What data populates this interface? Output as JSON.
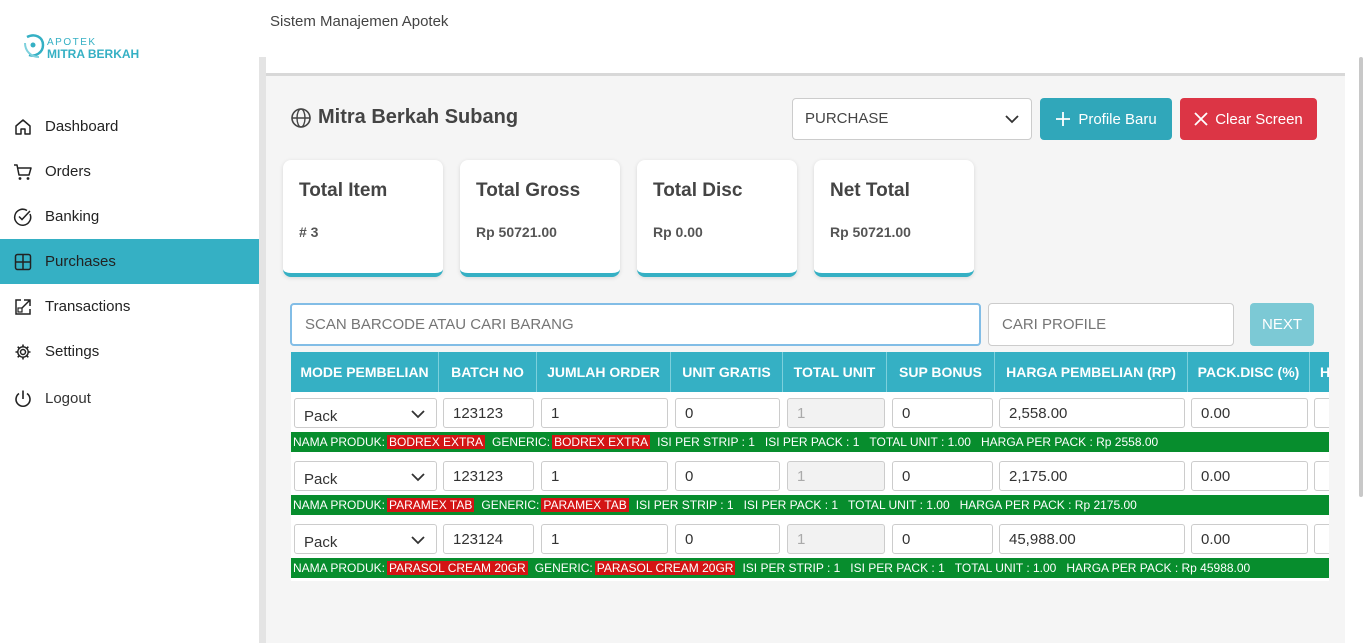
{
  "brand": {
    "line1": "APOTEK",
    "line2": "MITRA BERKAH"
  },
  "header": {
    "title": "Sistem Manajemen Apotek"
  },
  "nav": {
    "items": [
      {
        "label": "Dashboard",
        "icon": "home-icon"
      },
      {
        "label": "Orders",
        "icon": "cart-icon"
      },
      {
        "label": "Banking",
        "icon": "check-circle-icon"
      },
      {
        "label": "Purchases",
        "icon": "grid-icon",
        "active": true
      },
      {
        "label": "Transactions",
        "icon": "external-link-icon"
      },
      {
        "label": "Settings",
        "icon": "gear-icon"
      },
      {
        "label": "Logout",
        "icon": "power-icon"
      }
    ]
  },
  "store": {
    "name": "Mitra Berkah Subang"
  },
  "mode": {
    "selected": "PURCHASE"
  },
  "buttons": {
    "profile_baru": "Profile Baru",
    "clear_screen": "Clear Screen",
    "next": "NEXT"
  },
  "cards": [
    {
      "title": "Total Item",
      "value": "# 3"
    },
    {
      "title": "Total Gross",
      "value": "Rp 50721.00"
    },
    {
      "title": "Total Disc",
      "value": "Rp 0.00"
    },
    {
      "title": "Net Total",
      "value": "Rp 50721.00"
    }
  ],
  "search": {
    "placeholder": "SCAN BARCODE ATAU CARI BARANG",
    "profile_placeholder": "CARI PROFILE"
  },
  "table": {
    "columns": [
      "MODE PEMBELIAN",
      "BATCH NO",
      "JUMLAH ORDER",
      "UNIT GRATIS",
      "TOTAL UNIT",
      "SUP BONUS",
      "HARGA PEMBELIAN (RP)",
      "PACK.DISC (%)",
      "H"
    ],
    "rows": [
      {
        "mode": "Pack",
        "batch": "123123",
        "jumlah": "1",
        "gratis": "0",
        "total_unit": "1",
        "sup_bonus": "0",
        "harga": "2,558.00",
        "disc": "0.00",
        "info": {
          "nama_label": "NAMA PRODUK:",
          "nama": "BODREX EXTRA",
          "generic_label": "GENERIC:",
          "generic": "BODREX EXTRA",
          "strip": "ISI PER STRIP : 1",
          "pack": "ISI PER PACK : 1",
          "total": "TOTAL UNIT : 1.00",
          "harga_pack": "HARGA PER PACK : Rp 2558.00"
        }
      },
      {
        "mode": "Pack",
        "batch": "123123",
        "jumlah": "1",
        "gratis": "0",
        "total_unit": "1",
        "sup_bonus": "0",
        "harga": "2,175.00",
        "disc": "0.00",
        "info": {
          "nama_label": "NAMA PRODUK:",
          "nama": "PARAMEX TAB",
          "generic_label": "GENERIC:",
          "generic": "PARAMEX TAB",
          "strip": "ISI PER STRIP : 1",
          "pack": "ISI PER PACK : 1",
          "total": "TOTAL UNIT : 1.00",
          "harga_pack": "HARGA PER PACK : Rp 2175.00"
        }
      },
      {
        "mode": "Pack",
        "batch": "123124",
        "jumlah": "1",
        "gratis": "0",
        "total_unit": "1",
        "sup_bonus": "0",
        "harga": "45,988.00",
        "disc": "0.00",
        "info": {
          "nama_label": "NAMA PRODUK:",
          "nama": "PARASOL CREAM 20GR",
          "generic_label": "GENERIC:",
          "generic": "PARASOL CREAM 20GR",
          "strip": "ISI PER STRIP : 1",
          "pack": "ISI PER PACK : 1",
          "total": "TOTAL UNIT : 1.00",
          "harga_pack": "HARGA PER PACK : Rp 45988.00"
        }
      }
    ]
  },
  "colors": {
    "accent": "#35b0c4",
    "danger": "#dc3545",
    "info_bar": "#078d2d",
    "highlight": "#d31414"
  }
}
